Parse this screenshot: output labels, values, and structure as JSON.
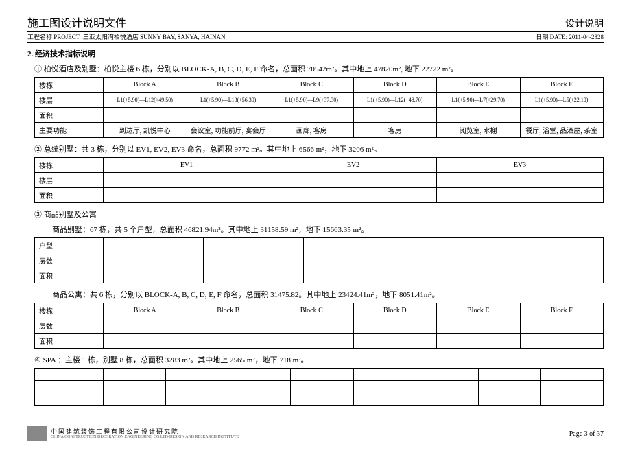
{
  "header": {
    "doc_title": "施工图设计说明文件",
    "doc_subtitle": "设计说明",
    "project_label": "工程名称 PROJECT :三亚太阳湾柏悦酒店 SUNNY BAY, SANYA, HAINAN",
    "date_label": "日期 DATE: 2011-04-2828"
  },
  "section": {
    "number": "2.",
    "title": "经济技术指标说明"
  },
  "item1": {
    "marker": "①",
    "desc": "柏悦酒店及别墅：柏悦主楼 6 栋，分别以 BLOCK-A, B, C, D, E, F 命名，总面积 70542m²。其中地上 47820m², 地下 22722 m²。",
    "rows": {
      "r1": "楼栋",
      "r2": "楼层",
      "r3": "面积",
      "r4": "主要功能"
    },
    "cols": {
      "c1": "Block A",
      "c2": "Block B",
      "c3": "Block C",
      "c4": "Block D",
      "c5": "Block E",
      "c6": "Block F"
    },
    "floors": {
      "c1": "L1(+5.90)—L12(+49.50)",
      "c2": "L1(+5.90)—L13(+56.30)",
      "c3": "L1(+5.90)—L9(+37.30)",
      "c4": "L1(+5.90)—L12(+48.70)",
      "c5": "L1(+5.90)—L7(+29.70)",
      "c6": "L1(+5.90)—L5(+22.10)"
    },
    "func": {
      "c1": "到达厅, 凯悦中心",
      "c2": "会议室, 功能前厅, 宴会厅",
      "c3": "画廊, 客房",
      "c4": "客房",
      "c5": "阅览室, 水榭",
      "c6": "餐厅, 浴堂, 品酒屋, 茶室"
    }
  },
  "item2": {
    "marker": "②",
    "desc": "总统别墅：共 3 栋，分别以 EV1, EV2, EV3 命名，总面积 9772 m²。其中地上 6566 m²，地下 3206 m²。",
    "rows": {
      "r1": "楼栋",
      "r2": "楼层",
      "r3": "面积"
    },
    "cols": {
      "c1": "EV1",
      "c2": "EV2",
      "c3": "EV3"
    }
  },
  "item3": {
    "marker": "③",
    "desc": "商品别墅及公寓",
    "sub1": "商品别墅：67 栋，共 5 个户型，总面积 46821.94m²。其中地上 31158.59 m²，地下 15663.35 m²。",
    "sub2": "商品公寓：共 6 栋，分别以 BLOCK-A, B, C, D, E, F 命名，总面积 31475.82。其中地上 23424.41m²，地下 8051.41m²。",
    "t1rows": {
      "r1": "户型",
      "r2": "层数",
      "r3": "面积"
    },
    "t2rows": {
      "r1": "楼栋",
      "r2": "层数",
      "r3": "面积"
    },
    "t2cols": {
      "c1": "Block A",
      "c2": "Block B",
      "c3": "Block C",
      "c4": "Block D",
      "c5": "Block E",
      "c6": "Block F"
    }
  },
  "item4": {
    "marker": "④",
    "desc": "SPA ：主楼 1 栋，别墅 8 栋，总面积 3283 m²。其中地上 2565 m²，地下 718 m²。"
  },
  "footer": {
    "org": "中国建筑装饰工程有限公司设计研究院",
    "org_en": "CHINA CONSTRUCTION DECORATION ENGINEERING CO.LTD-DESIGN AND RESEARCH INSTITUTE",
    "page": "Page 3 of 37"
  }
}
